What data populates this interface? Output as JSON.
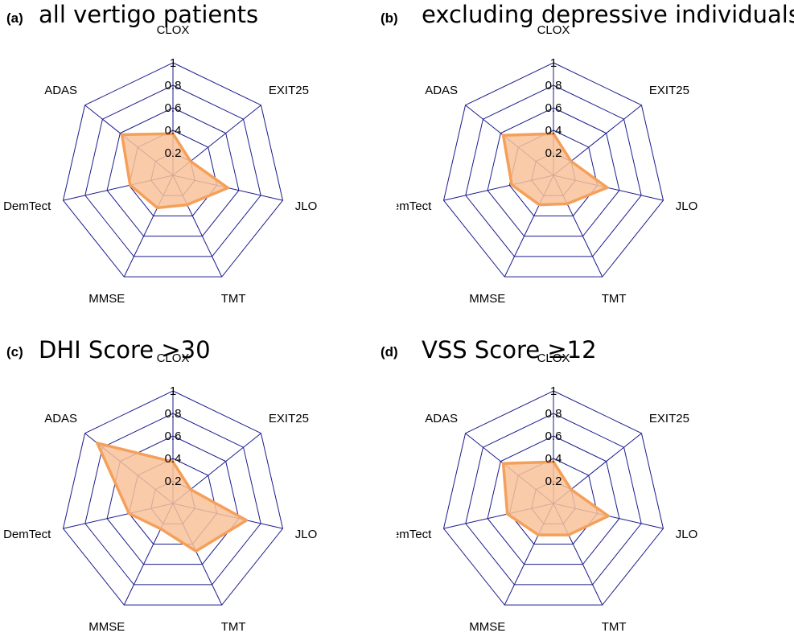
{
  "style": {
    "grid_color": "#1a1a8c",
    "series_stroke": "#f5a05a",
    "series_fill": "#f8c29a"
  },
  "chart_data": [
    {
      "type": "radar",
      "panel_letter": "(a)",
      "title": "all vertigo patients",
      "axes": [
        "CLOX",
        "EXIT25",
        "JLO",
        "TMT",
        "MMSE",
        "DemTect",
        "ADAS"
      ],
      "ticks": [
        "0.2",
        "0.4",
        "0.6",
        "0.8",
        "1"
      ],
      "rlim": [
        0,
        1
      ],
      "values": [
        0.37,
        0.2,
        0.5,
        0.29,
        0.32,
        0.39,
        0.58
      ]
    },
    {
      "type": "radar",
      "panel_letter": "(b)",
      "title": "excluding depressive individuals",
      "axes": [
        "CLOX",
        "EXIT25",
        "JLO",
        "TMT",
        "MMSE",
        "DemTect",
        "ADAS"
      ],
      "ticks": [
        "0.2",
        "0.4",
        "0.6",
        "0.8",
        "1"
      ],
      "rlim": [
        0,
        1
      ],
      "values": [
        0.37,
        0.2,
        0.49,
        0.28,
        0.29,
        0.38,
        0.57
      ]
    },
    {
      "type": "radar",
      "panel_letter": "(c)",
      "title": "DHI Score >30",
      "axes": [
        "CLOX",
        "EXIT25",
        "JLO",
        "TMT",
        "MMSE",
        "DemTect",
        "ADAS"
      ],
      "ticks": [
        "0.2",
        "0.4",
        "0.6",
        "0.8",
        "1"
      ],
      "rlim": [
        0,
        1
      ],
      "values": [
        0.37,
        0.2,
        0.67,
        0.47,
        0.25,
        0.4,
        0.86
      ]
    },
    {
      "type": "radar",
      "panel_letter": "(d)",
      "title": "VSS Score ≥12",
      "axes": [
        "CLOX",
        "EXIT25",
        "JLO",
        "TMT",
        "MMSE",
        "DemTect",
        "ADAS"
      ],
      "ticks": [
        "0.2",
        "0.4",
        "0.6",
        "0.8",
        "1"
      ],
      "rlim": [
        0,
        1
      ],
      "values": [
        0.37,
        0.2,
        0.5,
        0.31,
        0.31,
        0.42,
        0.57
      ]
    }
  ]
}
